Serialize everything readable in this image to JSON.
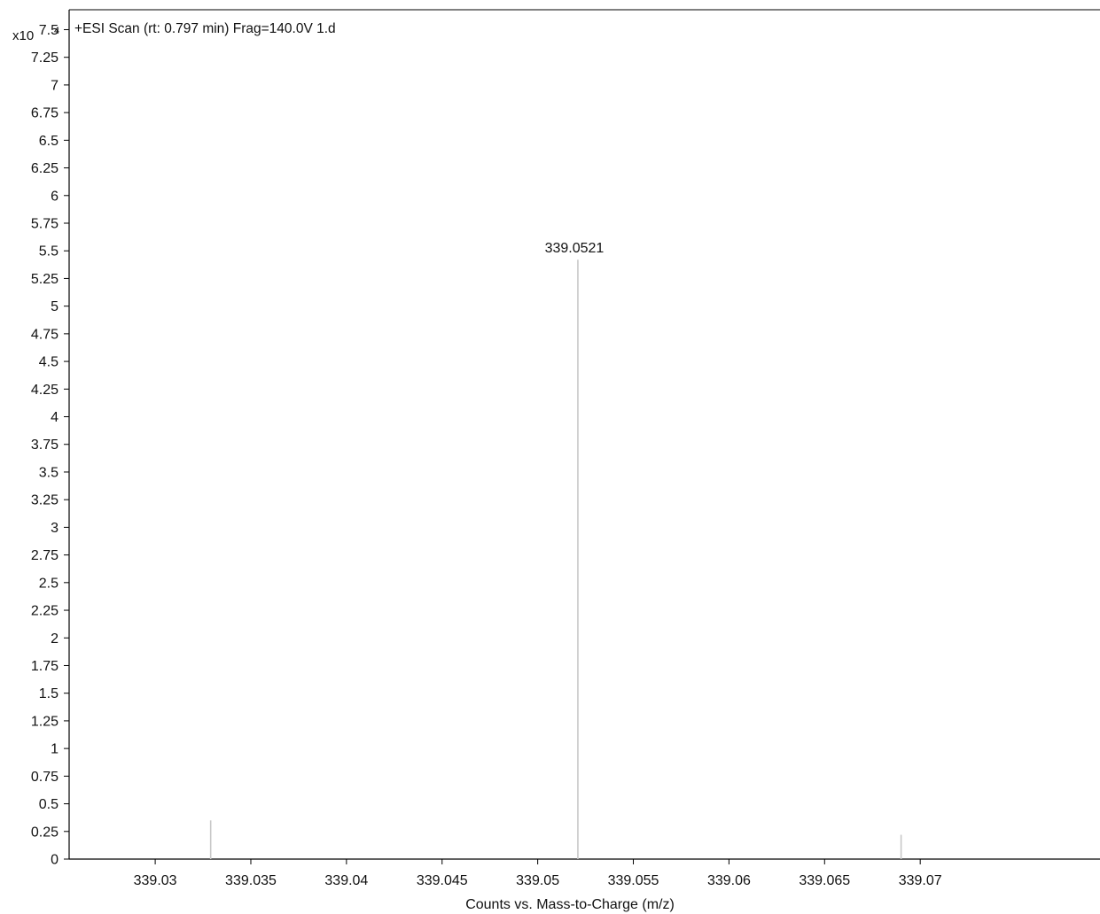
{
  "chart_data": {
    "type": "bar",
    "title": "+ESI Scan (rt: 0.797 min) Frag=140.0V 1.d",
    "xlabel": "Counts vs. Mass-to-Charge (m/z)",
    "ylabel": "",
    "y_multiplier_base": "x10",
    "y_multiplier_exp": "4",
    "xlim": [
      339.0255,
      339.0794
    ],
    "ylim": [
      0,
      7.68
    ],
    "x_ticks": [
      339.03,
      339.035,
      339.04,
      339.045,
      339.05,
      339.055,
      339.06,
      339.065,
      339.07
    ],
    "x_tick_labels": [
      "339.03",
      "339.035",
      "339.04",
      "339.045",
      "339.05",
      "339.055",
      "339.06",
      "339.065",
      "339.07"
    ],
    "y_ticks": [
      0,
      0.25,
      0.5,
      0.75,
      1,
      1.25,
      1.5,
      1.75,
      2,
      2.25,
      2.5,
      2.75,
      3,
      3.25,
      3.5,
      3.75,
      4,
      4.25,
      4.5,
      4.75,
      5,
      5.25,
      5.5,
      5.75,
      6,
      6.25,
      6.5,
      6.75,
      7,
      7.25,
      7.5
    ],
    "y_tick_labels": [
      "0",
      "0.25",
      "0.5",
      "0.75",
      "1",
      "1.25",
      "1.5",
      "1.75",
      "2",
      "2.25",
      "2.5",
      "2.75",
      "3",
      "3.25",
      "3.5",
      "3.75",
      "4",
      "4.25",
      "4.5",
      "4.75",
      "5",
      "5.25",
      "5.5",
      "5.75",
      "6",
      "6.25",
      "6.5",
      "6.75",
      "7",
      "7.25",
      "7.5"
    ],
    "grid": false,
    "peaks": [
      {
        "x": 339.0329,
        "y": 0.35,
        "label": ""
      },
      {
        "x": 339.0521,
        "y": 5.42,
        "label": "339.0521"
      },
      {
        "x": 339.069,
        "y": 0.22,
        "label": ""
      }
    ],
    "colors": {
      "axis": "#000000",
      "peak": "#c8c8c8",
      "text": "#111111"
    }
  }
}
